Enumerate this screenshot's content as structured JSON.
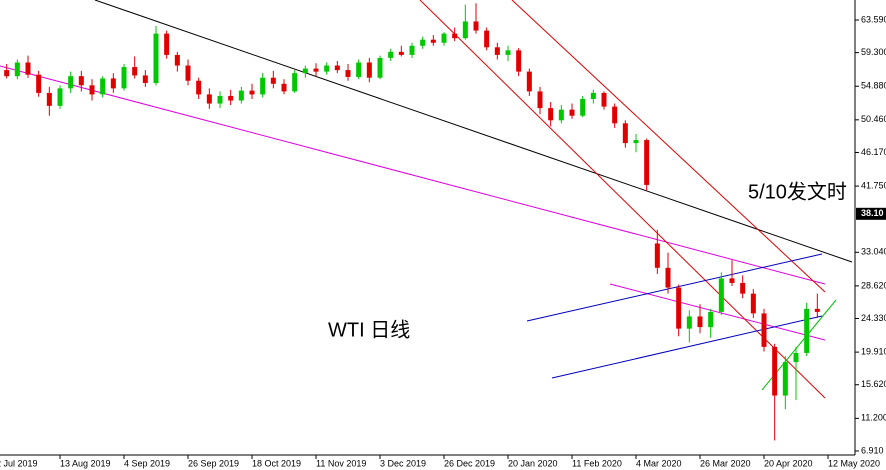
{
  "chart_data": {
    "type": "candlestick",
    "annotations": [
      "5/10发文时",
      "WTI 日线"
    ],
    "price_marker": {
      "value": 38.1,
      "label": "38.10"
    },
    "up_color": "#00c800",
    "down_color": "#e00000",
    "ylim": [
      6.38,
      66.22
    ],
    "yticks": [
      {
        "value": 6.91,
        "label": "6.910"
      },
      {
        "value": 11.2,
        "label": "11.200"
      },
      {
        "value": 15.62,
        "label": "15.620"
      },
      {
        "value": 19.91,
        "label": "19.910"
      },
      {
        "value": 24.33,
        "label": "24.330"
      },
      {
        "value": 28.62,
        "label": "28.620"
      },
      {
        "value": 33.04,
        "label": "33.040"
      },
      {
        "value": 41.75,
        "label": "41.750"
      },
      {
        "value": 46.17,
        "label": "46.170"
      },
      {
        "value": 50.46,
        "label": "50.460"
      },
      {
        "value": 54.88,
        "label": "54.880"
      },
      {
        "value": 59.3,
        "label": "59.300"
      },
      {
        "value": 63.59,
        "label": "63.590"
      }
    ],
    "categories": [
      "2 Jul 2019",
      null,
      null,
      null,
      null,
      null,
      "13 Aug 2019",
      null,
      null,
      null,
      null,
      null,
      "4 Sep 2019",
      null,
      null,
      null,
      null,
      null,
      "26 Sep 2019",
      null,
      null,
      null,
      null,
      null,
      "18 Oct 2019",
      null,
      null,
      null,
      null,
      null,
      "11 Nov 2019",
      null,
      null,
      null,
      null,
      null,
      "3 Dec 2019",
      null,
      null,
      null,
      null,
      null,
      "26 Dec 2019",
      null,
      null,
      null,
      null,
      null,
      "20 Jan 2020",
      null,
      null,
      null,
      null,
      null,
      "11 Feb 2020",
      null,
      null,
      null,
      null,
      null,
      "4 Mar 2020",
      null,
      null,
      null,
      null,
      null,
      "26 Mar 2020",
      null,
      null,
      null,
      null,
      null,
      "20 Apr 2020",
      null,
      null,
      null,
      null,
      null,
      "12 May 2020"
    ],
    "open": [
      56.5,
      57.0,
      56.2,
      58.0,
      56.4,
      54.0,
      52.3,
      54.6,
      56.2,
      55.0,
      53.8,
      55.9,
      54.6,
      57.4,
      56.3,
      55.3,
      61.8,
      59.0,
      57.6,
      55.6,
      53.8,
      52.6,
      53.6,
      53.0,
      54.3,
      53.8,
      56.0,
      55.2,
      54.2,
      56.6,
      57.2,
      56.8,
      57.6,
      57.0,
      56.1,
      58.0,
      56.0,
      58.6,
      59.4,
      59.0,
      60.2,
      61.0,
      60.6,
      61.8,
      61.2,
      63.4,
      62.2,
      60.0,
      59.0,
      59.6,
      56.8,
      54.2,
      52.0,
      50.4,
      51.8,
      51.0,
      53.2,
      54.0,
      52.2,
      50.0,
      47.4,
      47.8,
      34.2,
      31.0,
      28.4,
      23.0,
      24.6,
      23.2,
      25.2,
      29.6,
      29.0,
      27.6,
      25.0,
      20.6,
      14.2,
      18.6,
      19.8,
      25.6,
      null
    ],
    "high": [
      57.5,
      57.8,
      58.4,
      58.9,
      56.9,
      54.8,
      55.0,
      56.8,
      56.9,
      55.8,
      56.2,
      56.6,
      57.8,
      58.8,
      57.0,
      62.8,
      62.2,
      59.4,
      58.4,
      56.0,
      54.6,
      54.2,
      54.4,
      54.8,
      55.2,
      56.6,
      56.9,
      55.8,
      57.0,
      57.6,
      57.9,
      58.0,
      58.2,
      57.8,
      58.4,
      58.6,
      58.9,
      59.8,
      60.2,
      60.6,
      61.4,
      61.6,
      62.0,
      62.6,
      65.6,
      65.8,
      62.6,
      60.6,
      60.2,
      59.9,
      57.2,
      54.8,
      52.8,
      52.4,
      52.6,
      53.6,
      54.4,
      54.2,
      52.6,
      50.4,
      48.6,
      48.0,
      36.0,
      33.0,
      28.8,
      25.4,
      26.2,
      25.6,
      30.4,
      32.0,
      30.0,
      28.2,
      25.6,
      21.0,
      19.4,
      20.6,
      26.4,
      27.6,
      null
    ],
    "low": [
      55.8,
      55.9,
      55.8,
      56.0,
      53.5,
      51.0,
      51.9,
      54.0,
      54.2,
      53.0,
      53.4,
      54.0,
      54.3,
      55.9,
      54.8,
      55.0,
      58.5,
      56.8,
      55.0,
      53.2,
      51.9,
      52.0,
      52.4,
      52.6,
      53.2,
      53.4,
      54.6,
      53.8,
      54.0,
      56.0,
      56.2,
      56.4,
      56.6,
      55.6,
      55.8,
      55.4,
      55.8,
      58.2,
      58.8,
      58.6,
      59.8,
      60.2,
      60.2,
      60.8,
      61.0,
      61.8,
      59.6,
      58.4,
      58.2,
      56.2,
      53.6,
      51.2,
      49.6,
      50.0,
      50.6,
      50.8,
      52.6,
      51.8,
      49.4,
      46.8,
      46.2,
      41.2,
      30.2,
      27.6,
      22.0,
      21.2,
      22.4,
      21.8,
      24.8,
      28.6,
      27.0,
      24.4,
      20.0,
      8.3,
      12.4,
      13.6,
      19.4,
      24.4,
      null
    ],
    "close": [
      57.0,
      56.2,
      58.0,
      56.4,
      54.0,
      52.3,
      54.6,
      56.2,
      55.0,
      53.8,
      55.9,
      54.6,
      57.4,
      56.3,
      55.3,
      61.8,
      59.0,
      57.6,
      55.6,
      53.8,
      52.6,
      53.6,
      53.0,
      54.3,
      53.8,
      56.0,
      55.2,
      54.2,
      56.6,
      57.2,
      56.8,
      57.6,
      57.0,
      56.1,
      58.0,
      56.0,
      58.6,
      59.4,
      59.0,
      60.2,
      61.0,
      60.6,
      61.8,
      61.2,
      63.4,
      62.2,
      60.0,
      59.0,
      59.6,
      56.8,
      54.2,
      52.0,
      50.4,
      51.8,
      51.0,
      53.2,
      54.0,
      52.2,
      50.0,
      47.4,
      47.8,
      41.9,
      31.0,
      28.4,
      23.0,
      24.6,
      23.2,
      25.2,
      29.6,
      29.0,
      27.6,
      25.0,
      20.6,
      14.2,
      18.6,
      19.8,
      25.6,
      25.2,
      null
    ]
  }
}
